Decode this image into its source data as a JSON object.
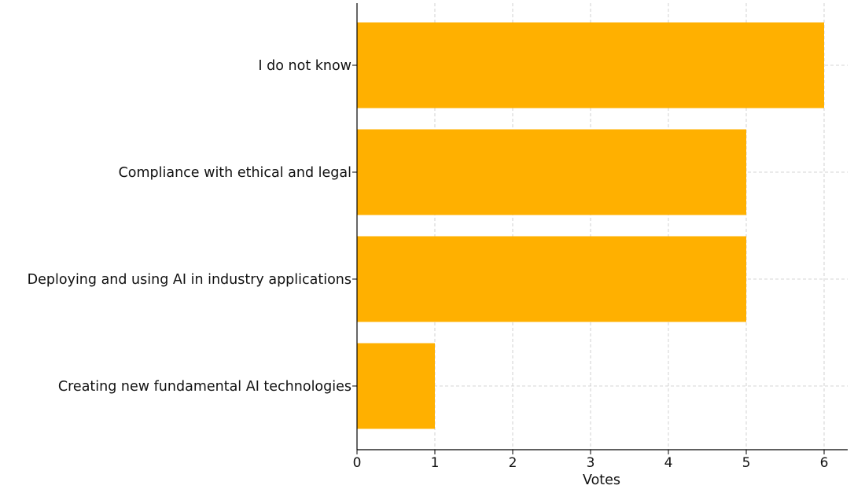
{
  "chart_data": {
    "type": "bar",
    "orientation": "horizontal",
    "categories": [
      "I do not know",
      "Compliance with ethical and legal",
      "Deploying and using AI in industry applications",
      "Creating new fundamental AI technologies"
    ],
    "values": [
      6,
      5,
      5,
      1
    ],
    "xlabel": "Votes",
    "ylabel": "",
    "title": "",
    "xlim": [
      0,
      6.3
    ],
    "xticks": [
      "0",
      "1",
      "2",
      "3",
      "4",
      "5",
      "6"
    ],
    "grid": true,
    "bar_color": "#FFB000"
  }
}
